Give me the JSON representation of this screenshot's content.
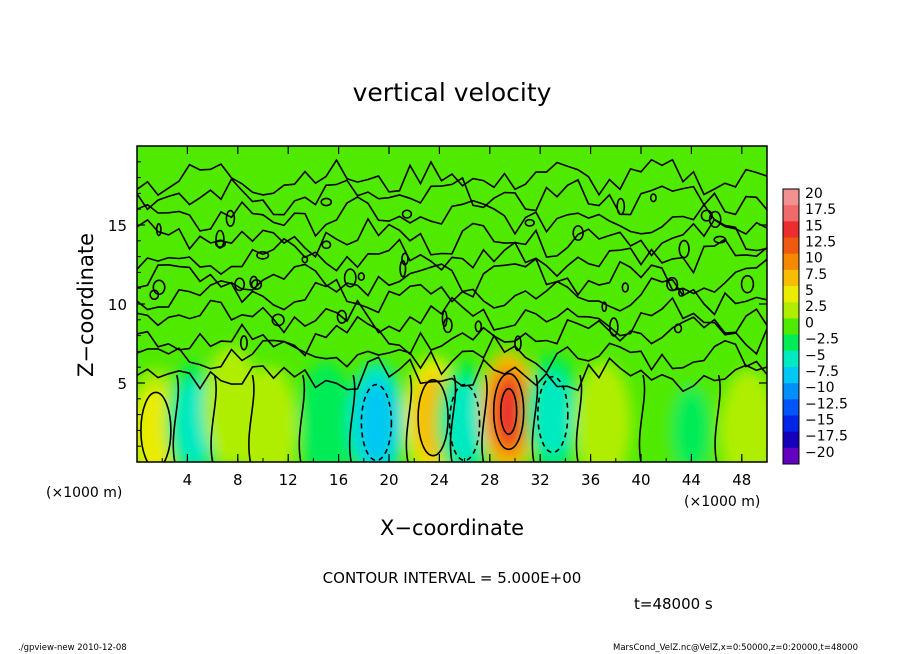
{
  "chart_data": {
    "type": "heatmap",
    "title": "vertical velocity",
    "xlabel": "X−coordinate",
    "ylabel": "Z−coordinate",
    "x_unit_left": "(×1000 m)",
    "x_unit_right": "(×1000 m)",
    "xlim": [
      0,
      50
    ],
    "ylim": [
      0,
      20
    ],
    "xticks": [
      "4",
      "8",
      "12",
      "16",
      "20",
      "24",
      "28",
      "32",
      "36",
      "40",
      "44",
      "48"
    ],
    "yticks": [
      "5",
      "10",
      "15"
    ],
    "colorbar": {
      "labels": [
        "20",
        "17.5",
        "15",
        "12.5",
        "10",
        "7.5",
        "5",
        "2.5",
        "0",
        "−2.5",
        "−5",
        "−7.5",
        "−10",
        "−12.5",
        "−15",
        "−17.5",
        "−20"
      ],
      "colors": [
        "#f29191",
        "#f06a6a",
        "#eb2d2d",
        "#ef5a10",
        "#f58a00",
        "#f7bd00",
        "#ecec00",
        "#b0ee00",
        "#50ea00",
        "#00ec56",
        "#00eac2",
        "#00c8f2",
        "#0090f8",
        "#0055f8",
        "#0025e6",
        "#1500ba",
        "#6400c0"
      ]
    },
    "contour_interval": "CONTOUR INTERVAL = 5.000E+00",
    "time": "t=48000 s",
    "cells": [
      {
        "x": 1.5,
        "z": 2.0,
        "w": 6
      },
      {
        "x": 4.5,
        "z": 2.5,
        "w": -4
      },
      {
        "x": 7.5,
        "z": 3.5,
        "w": 3
      },
      {
        "x": 10.5,
        "z": 2.2,
        "w": 3
      },
      {
        "x": 15,
        "z": 2.5,
        "w": -3
      },
      {
        "x": 19,
        "z": 2.5,
        "w": -7
      },
      {
        "x": 23.5,
        "z": 2.8,
        "w": 7
      },
      {
        "x": 26,
        "z": 2.5,
        "w": -6
      },
      {
        "x": 29.5,
        "z": 3.2,
        "w": 13
      },
      {
        "x": 33,
        "z": 3.0,
        "w": -6
      },
      {
        "x": 37,
        "z": 2.5,
        "w": 3
      },
      {
        "x": 44,
        "z": 2.0,
        "w": -2
      },
      {
        "x": 48.5,
        "z": 2.0,
        "w": 3
      }
    ]
  },
  "footer": {
    "left": "./gpview-new 2010-12-08",
    "right": "MarsCond_VelZ.nc@VelZ,x=0:50000,z=0:20000,t=48000"
  }
}
